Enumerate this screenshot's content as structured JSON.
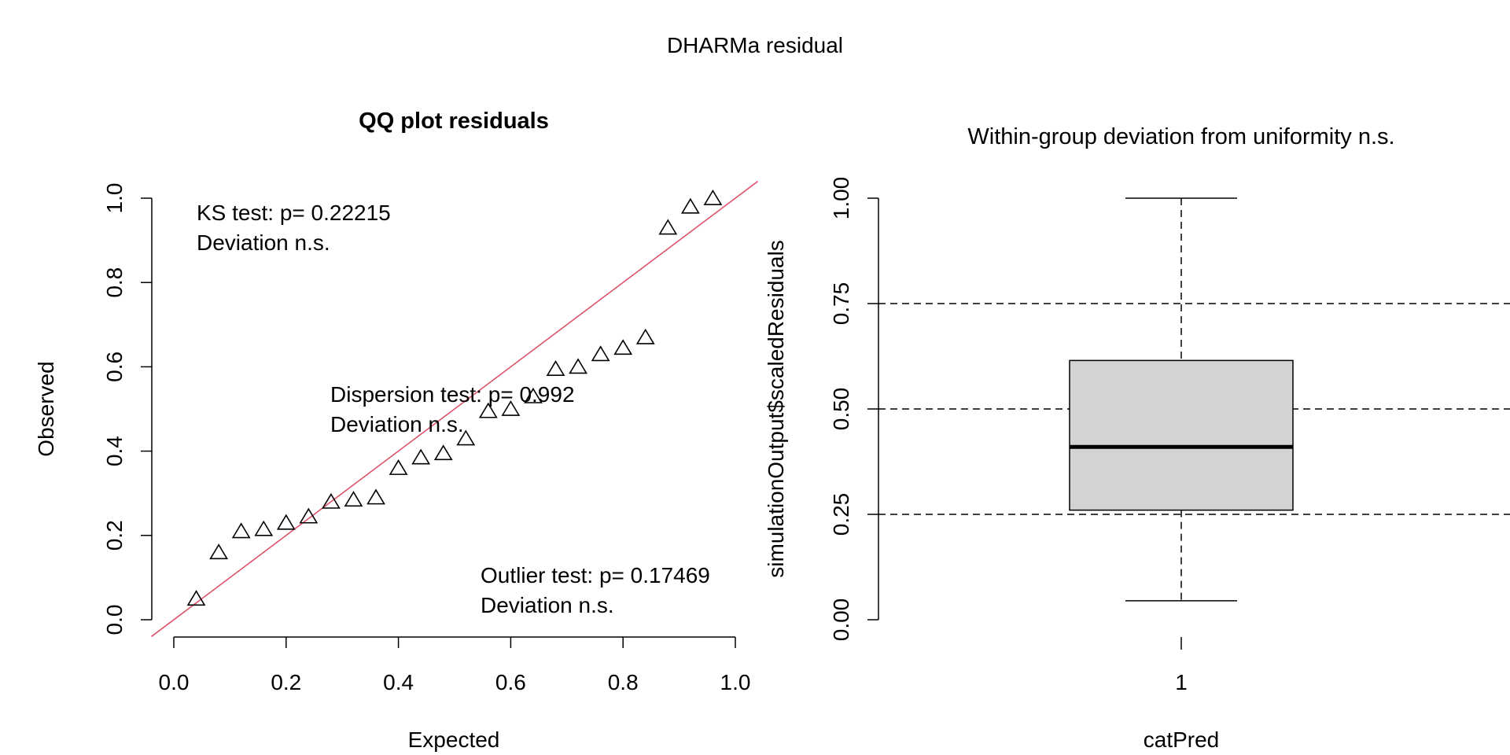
{
  "main_title": "DHARMa residual",
  "chart_data": [
    {
      "type": "scatter",
      "title": "QQ plot residuals",
      "xlabel": "Expected",
      "ylabel": "Observed",
      "xlim": [
        0,
        1
      ],
      "ylim": [
        0,
        1
      ],
      "x_ticks": [
        "0.0",
        "0.2",
        "0.4",
        "0.6",
        "0.8",
        "1.0"
      ],
      "y_ticks": [
        "0.0",
        "0.2",
        "0.4",
        "0.6",
        "0.8",
        "1.0"
      ],
      "marker": "triangle",
      "reference_line": {
        "from": [
          0,
          0
        ],
        "to": [
          1,
          1
        ],
        "color": "#DF536B"
      },
      "points": [
        {
          "x": 0.04,
          "y": 0.05
        },
        {
          "x": 0.08,
          "y": 0.16
        },
        {
          "x": 0.12,
          "y": 0.21
        },
        {
          "x": 0.16,
          "y": 0.215
        },
        {
          "x": 0.2,
          "y": 0.23
        },
        {
          "x": 0.24,
          "y": 0.245
        },
        {
          "x": 0.28,
          "y": 0.28
        },
        {
          "x": 0.32,
          "y": 0.285
        },
        {
          "x": 0.36,
          "y": 0.29
        },
        {
          "x": 0.4,
          "y": 0.36
        },
        {
          "x": 0.44,
          "y": 0.385
        },
        {
          "x": 0.48,
          "y": 0.395
        },
        {
          "x": 0.52,
          "y": 0.43
        },
        {
          "x": 0.56,
          "y": 0.495
        },
        {
          "x": 0.6,
          "y": 0.5
        },
        {
          "x": 0.64,
          "y": 0.53
        },
        {
          "x": 0.68,
          "y": 0.595
        },
        {
          "x": 0.72,
          "y": 0.6
        },
        {
          "x": 0.76,
          "y": 0.63
        },
        {
          "x": 0.8,
          "y": 0.645
        },
        {
          "x": 0.84,
          "y": 0.67
        },
        {
          "x": 0.88,
          "y": 0.93
        },
        {
          "x": 0.92,
          "y": 0.98
        },
        {
          "x": 0.96,
          "y": 1.0
        }
      ],
      "annotations": {
        "ks_line1": "KS test: p= 0.22215",
        "ks_line2": "Deviation  n.s.",
        "dispersion_line1": "Dispersion test: p= 0.992",
        "dispersion_line2": "Deviation  n.s.",
        "outlier_line1": "Outlier test: p= 0.17469",
        "outlier_line2": "Deviation  n.s."
      }
    },
    {
      "type": "boxplot",
      "title": "Within-group deviation from uniformity n.s.",
      "xlabel": "catPred",
      "ylabel": "simulationOutput$scaledResiduals",
      "ylim": [
        0,
        1
      ],
      "y_ticks": [
        "0.00",
        "0.25",
        "0.50",
        "0.75",
        "1.00"
      ],
      "categories": [
        "1"
      ],
      "box": {
        "min": 0.045,
        "q1": 0.26,
        "median": 0.41,
        "q3": 0.615,
        "max": 1.0
      },
      "box_fill": "#D3D3D3",
      "reference_lines": [
        0.25,
        0.5,
        0.75
      ]
    }
  ]
}
